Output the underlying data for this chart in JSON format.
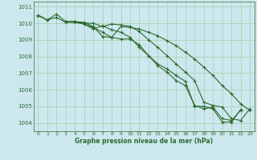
{
  "title": "Graphe pression niveau de la mer (hPa)",
  "bg_color": "#cce8ee",
  "grid_color": "#aaccaa",
  "line_color": "#2d6a2d",
  "xlim": [
    -0.5,
    23.5
  ],
  "ylim": [
    1003.5,
    1011.3
  ],
  "yticks": [
    1004,
    1005,
    1006,
    1007,
    1008,
    1009,
    1010,
    1011
  ],
  "xticks": [
    0,
    1,
    2,
    3,
    4,
    5,
    6,
    7,
    8,
    9,
    10,
    11,
    12,
    13,
    14,
    15,
    16,
    17,
    18,
    19,
    20,
    21,
    22,
    23
  ],
  "series": [
    [
      1010.5,
      1010.2,
      1010.55,
      1010.1,
      1010.1,
      1010.05,
      1009.8,
      1009.2,
      1009.15,
      1009.05,
      1009.05,
      1008.7,
      1008.05,
      1007.55,
      1007.25,
      1006.85,
      1006.5,
      1005.0,
      1005.0,
      1004.85,
      1004.05,
      1004.05,
      1004.8,
      null
    ],
    [
      1010.45,
      1010.2,
      1010.35,
      1010.05,
      1010.05,
      1009.95,
      1009.65,
      1009.85,
      1009.6,
      1009.45,
      1009.15,
      1008.55,
      1008.05,
      1007.45,
      1007.05,
      1006.55,
      1006.25,
      1005.05,
      1004.85,
      1004.95,
      1004.25,
      1004.15,
      1004.75,
      null
    ],
    [
      null,
      null,
      null,
      1010.1,
      1010.1,
      1010.0,
      1010.0,
      1009.8,
      1009.95,
      1009.9,
      1009.8,
      1009.5,
      1009.0,
      1008.55,
      1008.05,
      1007.55,
      1007.05,
      1006.55,
      1005.25,
      1005.05,
      1004.95,
      1004.25,
      1004.15,
      1004.85
    ],
    [
      null,
      null,
      null,
      null,
      1010.1,
      1009.95,
      1009.75,
      1009.45,
      1009.15,
      1009.8,
      1009.75,
      1009.65,
      1009.45,
      1009.25,
      1008.95,
      1008.65,
      1008.25,
      1007.85,
      1007.35,
      1006.85,
      1006.25,
      1005.75,
      1005.15,
      1004.75
    ]
  ]
}
